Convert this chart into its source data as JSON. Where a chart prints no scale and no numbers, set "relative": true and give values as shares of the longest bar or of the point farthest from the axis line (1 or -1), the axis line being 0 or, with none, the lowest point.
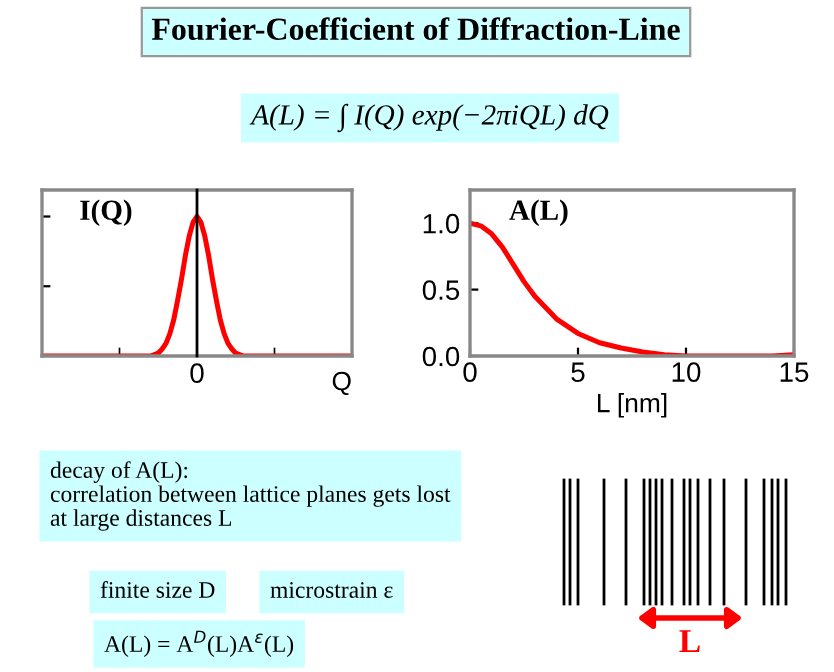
{
  "chart_data": [
    {
      "type": "line",
      "title": "I(Q)",
      "xlabel": "Q",
      "relative": true,
      "categories": [
        null,
        null,
        null,
        null,
        null,
        null,
        null,
        null,
        null,
        null,
        null,
        null,
        null,
        null,
        null,
        null,
        null,
        null,
        null,
        null,
        null,
        null,
        null,
        null,
        null,
        null,
        null,
        null,
        null,
        null,
        null,
        null,
        null,
        null,
        null,
        null,
        null,
        null,
        null,
        null,
        null,
        null,
        null,
        null,
        null,
        null,
        null,
        null,
        null,
        null,
        null,
        null,
        null,
        null,
        null,
        null,
        null,
        null,
        null,
        null,
        null,
        null,
        null,
        null,
        null,
        null,
        null,
        null,
        null,
        null,
        null,
        null,
        null,
        null,
        null,
        null,
        null,
        null,
        null,
        null,
        null
      ],
      "series": [
        {
          "color": "#ff0000",
          "values": [
            0,
            0,
            0,
            0,
            0,
            0,
            0,
            0,
            0,
            0,
            0,
            0,
            0,
            0,
            0,
            0,
            0,
            0,
            0,
            0,
            0,
            0,
            0,
            0,
            0,
            0,
            0,
            0,
            0,
            0.01,
            0.02,
            0.05,
            0.09,
            0.16,
            0.26,
            0.4,
            0.55,
            0.72,
            0.86,
            0.96,
            1,
            0.96,
            0.86,
            0.72,
            0.55,
            0.4,
            0.26,
            0.16,
            0.09,
            0.05,
            0.02,
            0.01,
            0,
            0,
            0,
            0,
            0,
            0,
            0,
            0,
            0,
            0,
            0,
            0,
            0,
            0,
            0,
            0,
            0,
            0,
            0,
            0,
            0,
            0,
            0,
            0,
            0,
            0,
            0,
            0,
            0
          ]
        }
      ],
      "annotations": [
        "0"
      ]
    },
    {
      "type": "line",
      "title": "A(L)",
      "xlabel": "L [nm]",
      "x": [
        0,
        0.5,
        1,
        1.5,
        2,
        2.5,
        3,
        4,
        5,
        6,
        7,
        8,
        9,
        10,
        11,
        12,
        13,
        14,
        15
      ],
      "xlim": [
        0,
        15
      ],
      "xticks": [
        0,
        5,
        10,
        15
      ],
      "ylim": [
        0,
        1.25
      ],
      "yticks": [
        {
          "value": 0,
          "label": "0.0"
        },
        {
          "value": 0.5,
          "label": "0.5"
        },
        {
          "value": 1,
          "label": "1.0"
        }
      ],
      "series": [
        {
          "color": "#ff0000",
          "values": [
            1.0,
            0.98,
            0.92,
            0.82,
            0.69,
            0.56,
            0.45,
            0.28,
            0.17,
            0.1,
            0.06,
            0.03,
            0.01,
            0,
            0,
            0,
            0,
            0,
            0.01
          ]
        }
      ]
    },
    {
      "type": "other",
      "title": "Fourier-Coefficient of Diffraction-Line",
      "subtitle": "A(L) = ∫ I(Q) exp(−2πiQL) dQ",
      "annotations": [
        "decay of A(L):\ncorrelation between lattice planes gets lost\nat large distances L",
        "finite size D",
        "microstrain ε",
        "A(L) = A$^{D}$(L)A$^{ε}$(L)",
        "L"
      ]
    }
  ]
}
